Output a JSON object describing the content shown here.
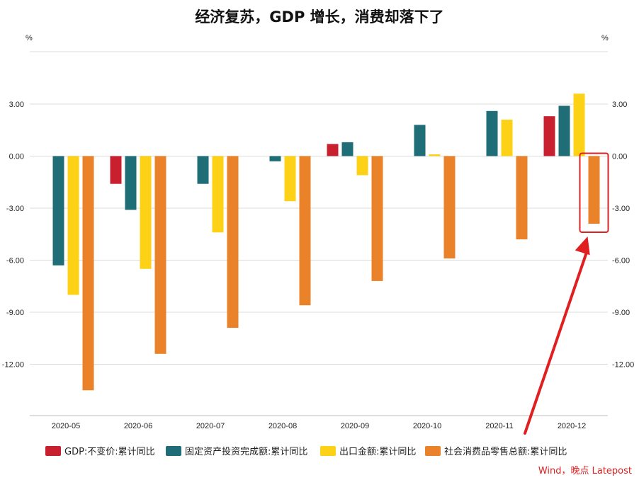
{
  "chart_data": {
    "type": "bar",
    "title": "经济复苏，GDP 增长，消费却落下了",
    "y_unit_left": "%",
    "y_unit_right": "%",
    "ylim": [
      -15,
      5
    ],
    "y_ticks": [
      3,
      0,
      -3,
      -6,
      -9,
      -12
    ],
    "y_tick_labels": [
      "3.00",
      "0.00",
      "-3.00",
      "-6.00",
      "-9.00",
      "-12.00"
    ],
    "categories": [
      "2020-05",
      "2020-06",
      "2020-07",
      "2020-08",
      "2020-09",
      "2020-10",
      "2020-11",
      "2020-12"
    ],
    "series": [
      {
        "name": "GDP:不变价:累计同比",
        "color": "#c8202f",
        "values": [
          null,
          -1.6,
          null,
          null,
          0.7,
          null,
          null,
          2.3
        ]
      },
      {
        "name": "固定资产投资完成额:累计同比",
        "color": "#1f6e77",
        "values": [
          -6.3,
          -3.1,
          -1.6,
          -0.3,
          0.8,
          1.8,
          2.6,
          2.9
        ]
      },
      {
        "name": "出口金额:累计同比",
        "color": "#fcd116",
        "values": [
          -8.0,
          -6.5,
          -4.4,
          -2.6,
          -1.1,
          0.1,
          2.1,
          3.6
        ]
      },
      {
        "name": "社会消费品零售总额:累计同比",
        "color": "#e98228",
        "values": [
          -13.5,
          -11.4,
          -9.9,
          -8.6,
          -7.2,
          -5.9,
          -4.8,
          -3.9
        ]
      }
    ],
    "grid": true,
    "legend": "bottom",
    "highlight": {
      "category": "2020-12",
      "series": 3,
      "color": "#e02020"
    }
  },
  "source_note": "Wind，晚点 Latepost"
}
